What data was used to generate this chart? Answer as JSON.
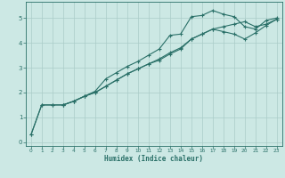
{
  "xlabel": "Humidex (Indice chaleur)",
  "bg_color": "#cce8e4",
  "grid_color": "#aaccc8",
  "line_color": "#2a7068",
  "xlim": [
    -0.5,
    23.5
  ],
  "ylim": [
    -0.15,
    5.65
  ],
  "xticks": [
    0,
    1,
    2,
    3,
    4,
    5,
    6,
    7,
    8,
    9,
    10,
    11,
    12,
    13,
    14,
    15,
    16,
    17,
    18,
    19,
    20,
    21,
    22,
    23
  ],
  "yticks": [
    0,
    1,
    2,
    3,
    4,
    5
  ],
  "curve1_x": [
    0,
    1,
    2,
    3,
    4,
    5,
    6,
    7,
    8,
    9,
    10,
    11,
    12,
    13,
    14,
    15,
    16,
    17,
    18,
    19,
    20,
    21,
    22,
    23
  ],
  "curve1_y": [
    0.3,
    1.5,
    1.5,
    1.5,
    1.65,
    1.85,
    2.05,
    2.55,
    2.8,
    3.05,
    3.25,
    3.5,
    3.75,
    4.3,
    4.35,
    5.05,
    5.1,
    5.3,
    5.15,
    5.05,
    4.65,
    4.55,
    4.9,
    5.0
  ],
  "curve2_x": [
    3,
    4,
    5,
    6,
    7,
    8,
    9,
    10,
    11,
    12,
    13,
    14,
    15,
    16,
    17,
    18,
    19,
    20,
    21,
    22,
    23
  ],
  "curve2_y": [
    1.5,
    1.65,
    1.85,
    2.0,
    2.25,
    2.5,
    2.75,
    2.95,
    3.15,
    3.3,
    3.55,
    3.75,
    4.15,
    4.35,
    4.55,
    4.65,
    4.75,
    4.85,
    4.65,
    4.75,
    4.95
  ],
  "curve3_x": [
    0,
    1,
    2,
    3,
    4,
    5,
    6,
    7,
    8,
    9,
    10,
    11,
    12,
    13,
    14,
    15,
    16,
    17,
    18,
    19,
    20,
    21,
    22,
    23
  ],
  "curve3_y": [
    0.3,
    1.5,
    1.5,
    1.5,
    1.65,
    1.85,
    2.0,
    2.25,
    2.5,
    2.75,
    2.95,
    3.15,
    3.35,
    3.6,
    3.8,
    4.15,
    4.35,
    4.55,
    4.45,
    4.35,
    4.15,
    4.4,
    4.7,
    4.95
  ]
}
